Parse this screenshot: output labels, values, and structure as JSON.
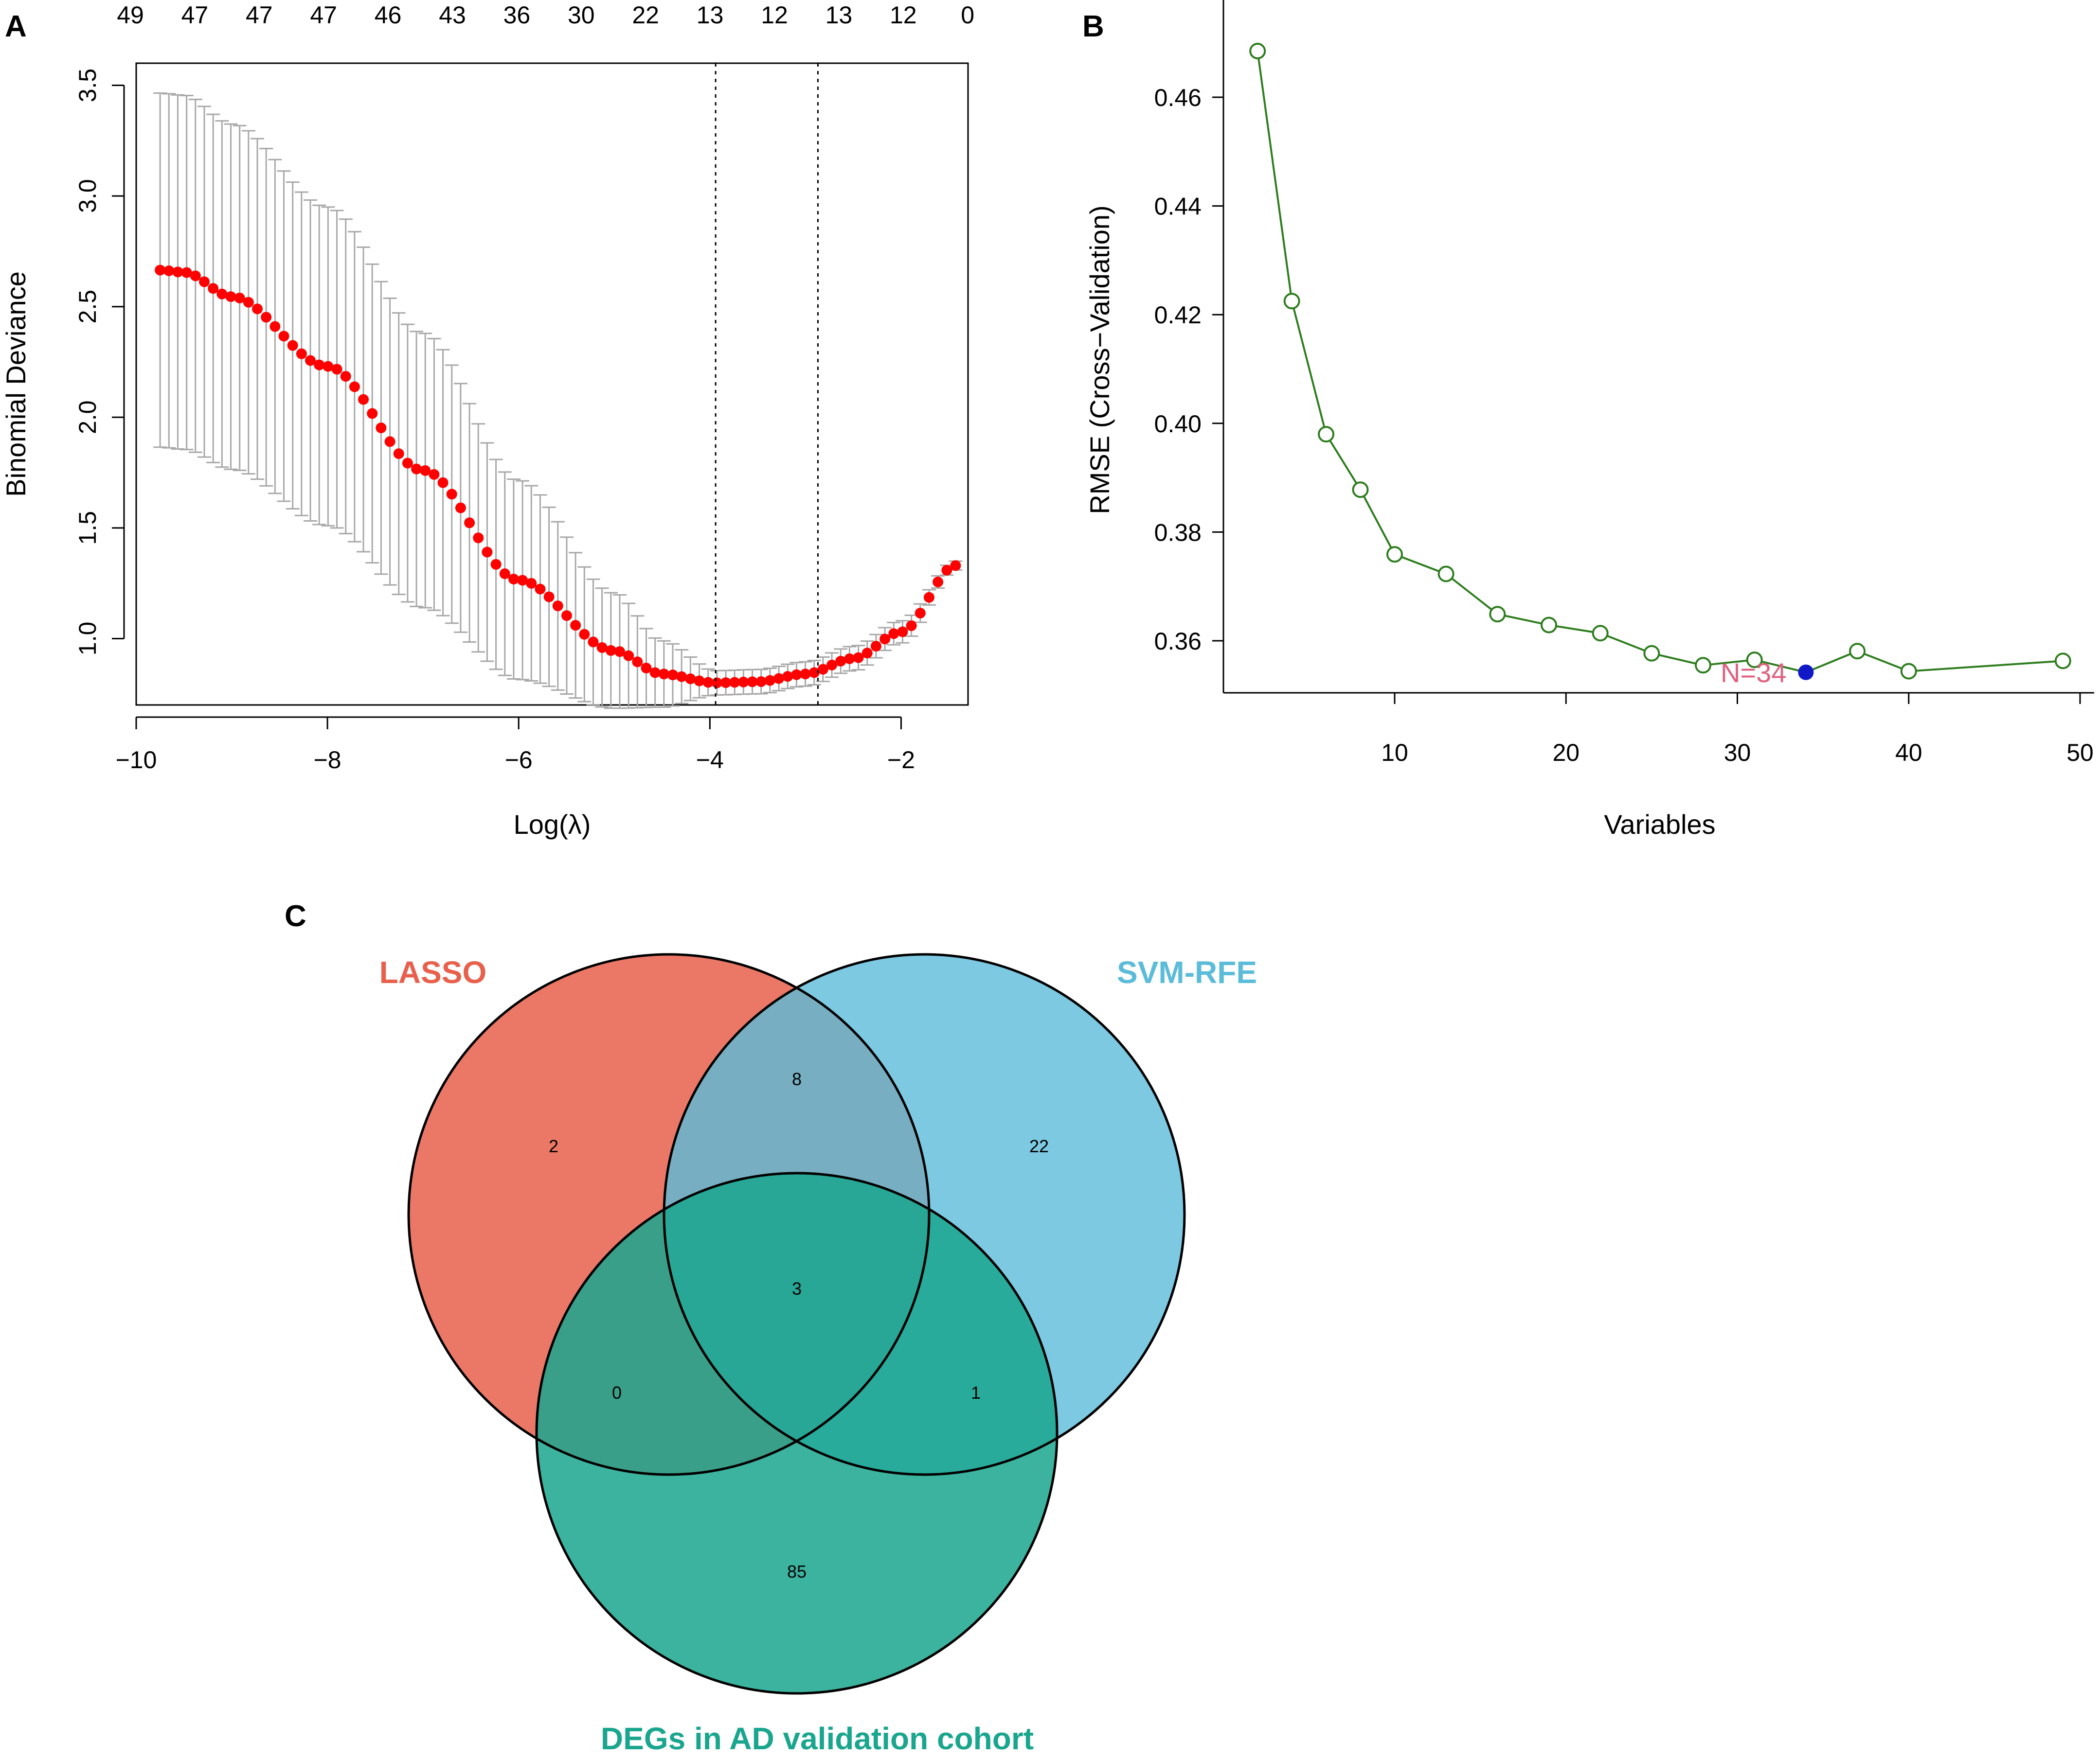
{
  "panel_a": {
    "letter": "A",
    "top_axis_labels": [
      "49",
      "47",
      "47",
      "47",
      "46",
      "43",
      "36",
      "30",
      "22",
      "13",
      "12",
      "13",
      "12",
      "0"
    ],
    "x_ticks": [
      "−10",
      "−8",
      "−6",
      "−4",
      "−2"
    ],
    "y_ticks": [
      "1.0",
      "1.5",
      "2.0",
      "2.5",
      "3.0",
      "3.5"
    ],
    "xlabel": "Log(λ)",
    "ylabel": "Binomial Deviance"
  },
  "panel_b": {
    "letter": "B",
    "x_ticks": [
      "10",
      "20",
      "30",
      "40",
      "50"
    ],
    "y_ticks": [
      "0.36",
      "0.38",
      "0.40",
      "0.42",
      "0.44",
      "0.46"
    ],
    "xlabel": "Variables",
    "ylabel": "RMSE (Cross−Validation)",
    "annotation": "N=34"
  },
  "panel_c": {
    "letter": "C",
    "sets": [
      {
        "label": "LASSO",
        "color": "#E8604C"
      },
      {
        "label": "SVM-RFE",
        "color": "#5BBCD9"
      },
      {
        "label": "DEGs in AD validation cohort",
        "color": "#1AA68E"
      }
    ],
    "region_counts": {
      "lasso_only": "2",
      "lasso_svm": "8",
      "svm_only": "22",
      "all_three": "3",
      "lasso_deg": "0",
      "svm_deg": "1",
      "deg_only": "85"
    }
  },
  "colors": {
    "lasso_point": "#FF0000",
    "error_bar": "#A8A8A8",
    "rfe_line": "#2E7D1E",
    "rfe_best": "#1018C8",
    "annotation": "#E0607E"
  },
  "chart_data": [
    {
      "type": "line",
      "title": "",
      "xlabel": "Log(λ)",
      "ylabel": "Binomial Deviance",
      "xlim": [
        -10.0,
        -1.3
      ],
      "ylim": [
        0.7,
        3.6
      ],
      "grid": false,
      "num_points": 91,
      "log_lambda_start": -9.75,
      "log_lambda_end": -1.43,
      "curve_anchors": [
        {
          "x": -9.75,
          "y": 2.665,
          "se": 0.8
        },
        {
          "x": -9.5,
          "y": 2.655,
          "se": 0.8
        },
        {
          "x": -9.0,
          "y": 2.545,
          "se": 0.78
        },
        {
          "x": -8.0,
          "y": 2.23,
          "se": 0.72
        },
        {
          "x": -7.0,
          "y": 1.76,
          "se": 0.62
        },
        {
          "x": -6.0,
          "y": 1.265,
          "se": 0.45
        },
        {
          "x": -5.0,
          "y": 0.945,
          "se": 0.26
        },
        {
          "x": -4.5,
          "y": 0.84,
          "se": 0.15
        },
        {
          "x": -3.94,
          "y": 0.8,
          "se": 0.055
        },
        {
          "x": -3.5,
          "y": 0.805,
          "se": 0.055
        },
        {
          "x": -3.0,
          "y": 0.84,
          "se": 0.055
        },
        {
          "x": -2.5,
          "y": 0.91,
          "se": 0.055
        },
        {
          "x": -2.0,
          "y": 1.03,
          "se": 0.05
        },
        {
          "x": -1.43,
          "y": 1.33,
          "se": 0.02
        }
      ],
      "lambda_min": -3.94,
      "lambda_1se": -2.87,
      "top_axis_values": [
        49,
        47,
        47,
        47,
        46,
        43,
        36,
        30,
        22,
        13,
        12,
        13,
        12,
        0
      ]
    },
    {
      "type": "line",
      "title": "",
      "xlabel": "Variables",
      "ylabel": "RMSE (Cross−Validation)",
      "xlim": [
        0,
        50
      ],
      "ylim": [
        0.35,
        0.47
      ],
      "grid": false,
      "x": [
        2,
        4,
        6,
        8,
        10,
        13,
        16,
        19,
        22,
        25,
        28,
        31,
        34,
        37,
        40,
        49
      ],
      "y": [
        0.4685,
        0.4225,
        0.398,
        0.3878,
        0.3759,
        0.3723,
        0.3649,
        0.3629,
        0.3614,
        0.3577,
        0.3555,
        0.3565,
        0.3542,
        0.3581,
        0.3544,
        0.3563
      ],
      "best_x": 34,
      "annotation": "N=34"
    }
  ]
}
